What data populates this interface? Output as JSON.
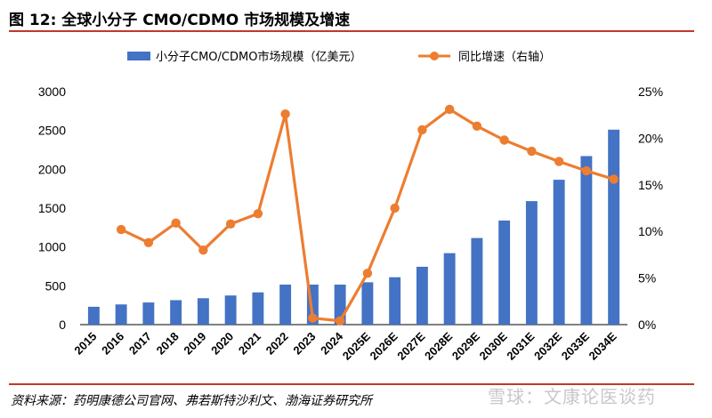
{
  "header": {
    "title": "图 12:  全球小分子 CMO/CDMO 市场规模及增速"
  },
  "footer": {
    "source": "资料来源：药明康德公司官网、弗若斯特沙利文、渤海证券研究所",
    "watermark": "雪球：文康论医谈药"
  },
  "colors": {
    "bar": "#4472c4",
    "line": "#ed7d31",
    "accent": "#c0392b"
  },
  "chart_data": {
    "type": "bar",
    "categories": [
      "2015",
      "2016",
      "2017",
      "2018",
      "2019",
      "2020",
      "2021",
      "2022",
      "2023",
      "2024",
      "2025E",
      "2026E",
      "2027E",
      "2028E",
      "2029E",
      "2030E",
      "2031E",
      "2032E",
      "2033E",
      "2034E"
    ],
    "series": [
      {
        "name": "小分子CMO/CDMO市场规模（亿美元）",
        "type": "bar",
        "axis": "left",
        "values": [
          230,
          260,
          285,
          315,
          340,
          375,
          415,
          515,
          515,
          515,
          545,
          610,
          745,
          920,
          1115,
          1340,
          1590,
          1865,
          2170,
          2510
        ]
      },
      {
        "name": "同比增速（右轴）",
        "type": "line",
        "axis": "right",
        "values": [
          null,
          10.2,
          8.8,
          10.9,
          8.0,
          10.8,
          11.9,
          22.6,
          0.7,
          0.4,
          5.5,
          12.5,
          20.9,
          23.1,
          21.3,
          19.8,
          18.6,
          17.5,
          16.5,
          15.6
        ]
      }
    ],
    "y_left": {
      "min": 0,
      "max": 3000,
      "ticks": [
        "0",
        "500",
        "1000",
        "1500",
        "2000",
        "2500",
        "3000"
      ]
    },
    "y_right": {
      "min": 0,
      "max": 25,
      "ticks": [
        "0%",
        "5%",
        "10%",
        "15%",
        "20%",
        "25%"
      ]
    },
    "grid": false,
    "legend_position": "top"
  }
}
